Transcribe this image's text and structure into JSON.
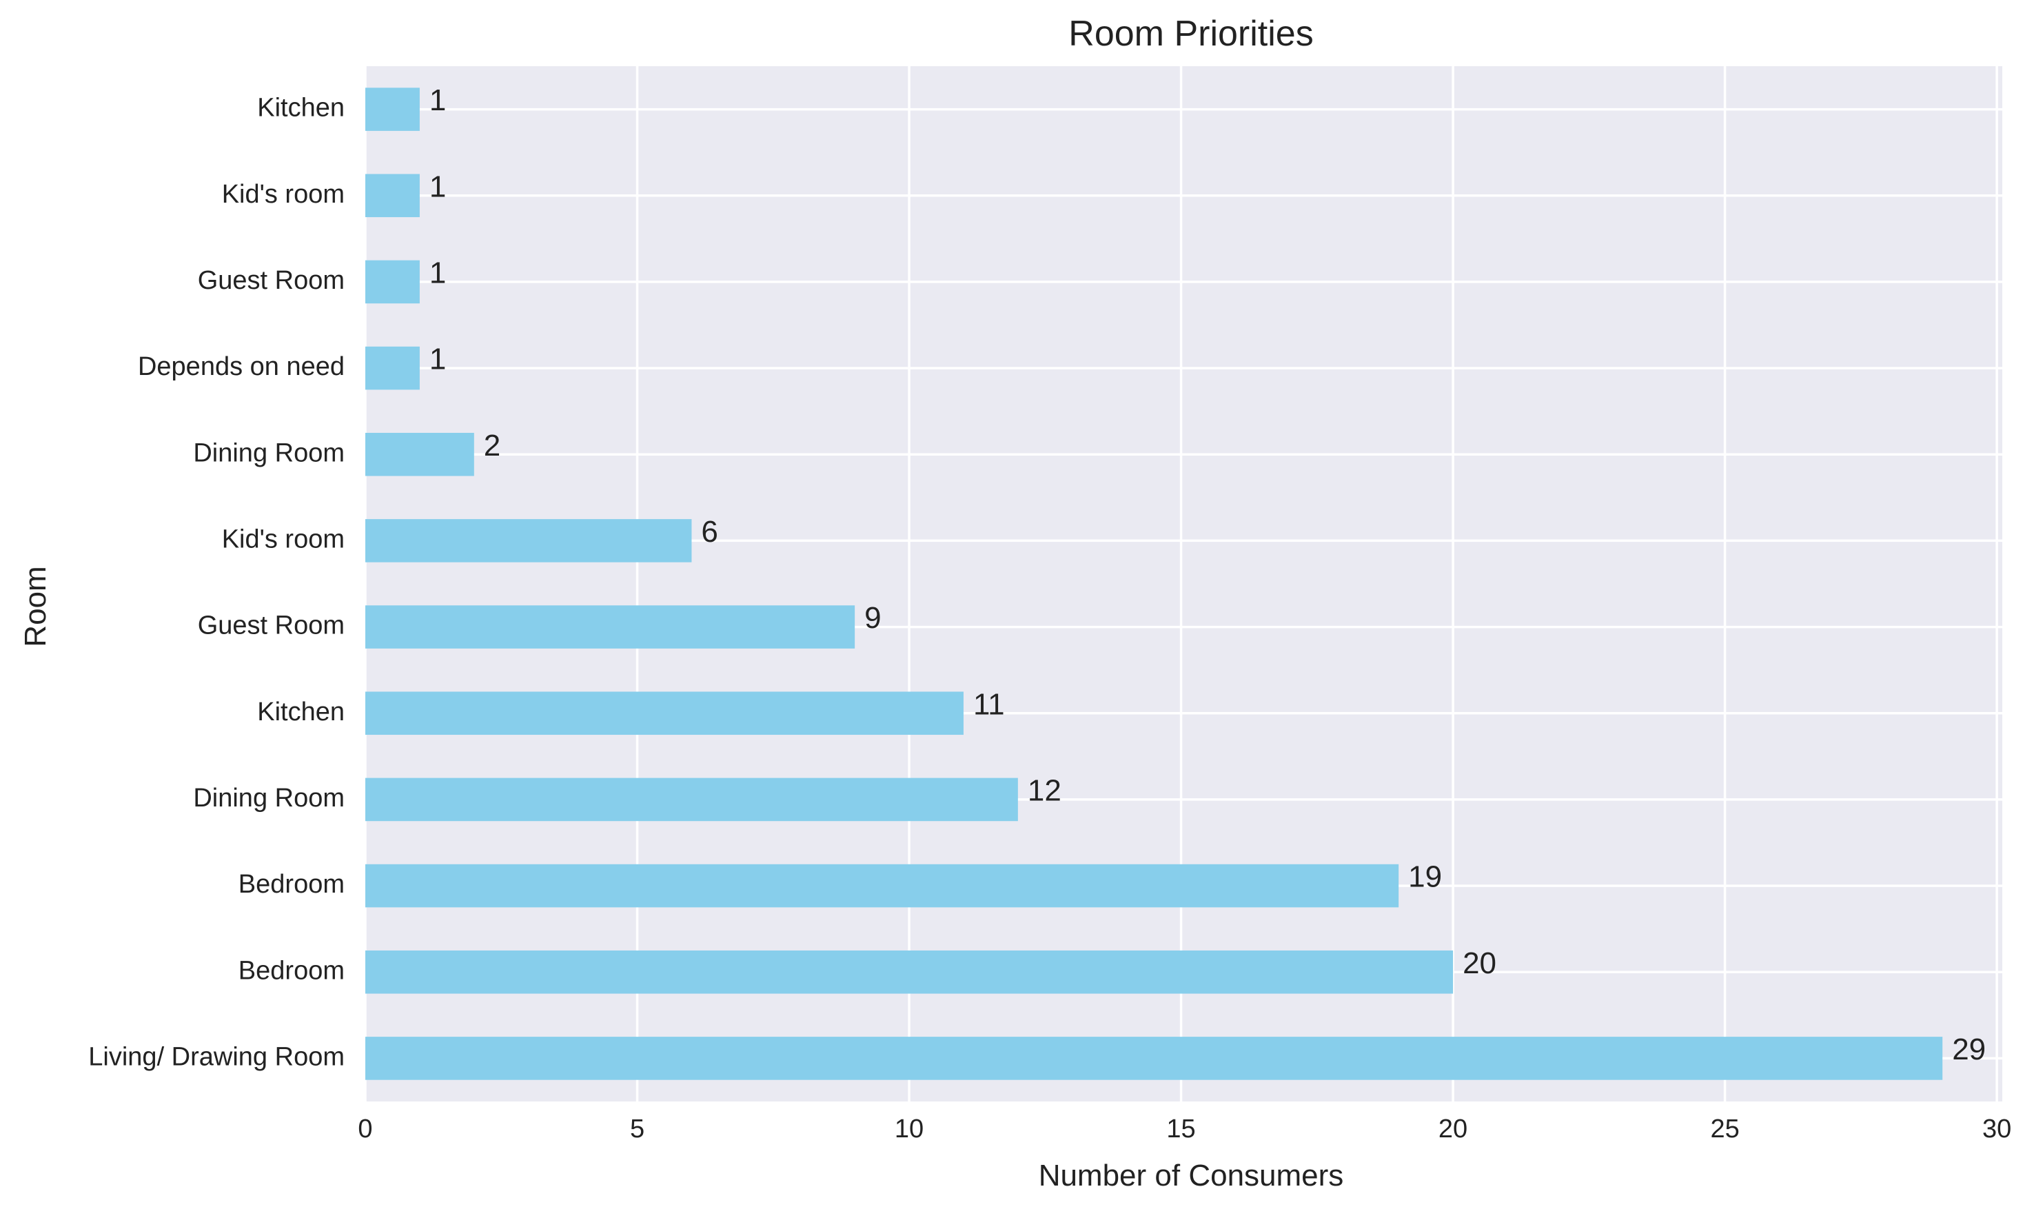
{
  "chart_data": {
    "type": "bar",
    "orientation": "horizontal",
    "title": "Room Priorities",
    "xlabel": "Number of Consumers",
    "ylabel": "Room",
    "categories": [
      "Living/ Drawing Room",
      "Bedroom",
      "Bedroom",
      "Dining Room",
      "Kitchen",
      "Guest Room",
      "Kid's room",
      "Dining Room",
      "Depends on need",
      "Guest Room",
      "Kid's room",
      "Kitchen"
    ],
    "values": [
      29,
      20,
      19,
      12,
      11,
      9,
      6,
      2,
      1,
      1,
      1,
      1
    ],
    "xlim": [
      0,
      30.1
    ],
    "xticks": [
      0,
      5,
      10,
      15,
      20,
      25,
      30
    ],
    "grid": true,
    "data_labels": true,
    "colors": {
      "bar": "#87ceeb",
      "plot_background": "#eaeaf2",
      "grid": "#ffffff",
      "text": "#222222"
    }
  }
}
